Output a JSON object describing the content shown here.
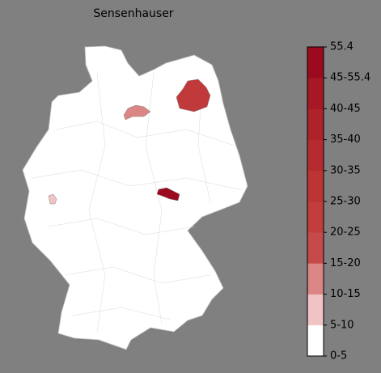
{
  "title": "Sensenhauser",
  "colorbar": {
    "labels": [
      "0-5",
      "5-10",
      "10-15",
      "15-20",
      "20-25",
      "25-30",
      "30-35",
      "35-40",
      "40-45",
      "45-55.4",
      "55.4"
    ],
    "colors": [
      "#ffffff",
      "#f0c4c4",
      "#dc8585",
      "#c64a4a",
      "#c23d3d",
      "#bc3434",
      "#b62b2f",
      "#ae2229",
      "#a51824",
      "#9b0a1f"
    ]
  }
}
